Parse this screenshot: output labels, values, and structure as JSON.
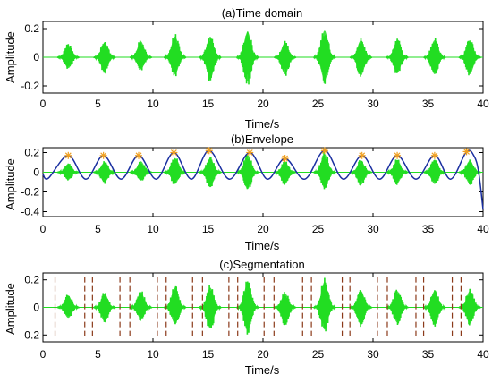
{
  "chart_data": [
    {
      "type": "line",
      "title": "(a)Time domain",
      "xlabel": "Time/s",
      "ylabel": "Amplitude",
      "xlim": [
        0,
        40
      ],
      "ylim": [
        -0.25,
        0.25
      ],
      "xticks": [
        0,
        5,
        10,
        15,
        20,
        25,
        30,
        35,
        40
      ],
      "yticks": [
        0.2,
        0,
        -0.2
      ],
      "yticklabels": [
        "0.2",
        "0",
        "-0.2"
      ],
      "grid": false,
      "series": [
        {
          "role": "signal",
          "color": "#22dd22",
          "burst_centers": [
            2.3,
            5.6,
            8.9,
            12.0,
            15.2,
            18.6,
            22.0,
            25.6,
            28.9,
            32.2,
            35.6,
            38.8
          ],
          "burst_peak": [
            0.1,
            0.12,
            0.13,
            0.17,
            0.17,
            0.21,
            0.12,
            0.22,
            0.14,
            0.14,
            0.14,
            0.14
          ],
          "burst_trough": [
            -0.09,
            -0.12,
            -0.1,
            -0.14,
            -0.18,
            -0.2,
            -0.14,
            -0.19,
            -0.15,
            -0.13,
            -0.14,
            -0.14
          ]
        }
      ]
    },
    {
      "type": "line",
      "title": "(b)Envelope",
      "xlabel": "Time/s",
      "ylabel": "Amplitude",
      "xlim": [
        0,
        40
      ],
      "ylim": [
        -0.45,
        0.25
      ],
      "xticks": [
        0,
        5,
        10,
        15,
        20,
        25,
        30,
        35,
        40
      ],
      "yticks": [
        0.2,
        0,
        -0.2,
        -0.4
      ],
      "yticklabels": [
        "0.2",
        "0",
        "-0.2",
        "-0.4"
      ],
      "grid": false,
      "envelope_color": "#1a2fa0",
      "peak_marker_color": "#f0a020",
      "peaks_x": [
        2.3,
        5.5,
        8.7,
        11.9,
        15.1,
        18.8,
        22.0,
        25.6,
        29.0,
        32.2,
        35.6,
        38.5
      ],
      "peaks_y": [
        0.17,
        0.17,
        0.17,
        0.2,
        0.22,
        0.2,
        0.14,
        0.22,
        0.17,
        0.17,
        0.17,
        0.21
      ],
      "envelope_tail": [
        [
          39.2,
          0.16
        ],
        [
          39.6,
          0.0
        ],
        [
          40.0,
          -0.38
        ]
      ],
      "envelope_start": [
        [
          0.0,
          -0.02
        ],
        [
          0.5,
          -0.06
        ]
      ]
    },
    {
      "type": "line",
      "title": "(c)Segmentation",
      "xlabel": "Time/s",
      "ylabel": "Amplitude",
      "xlim": [
        0,
        40
      ],
      "ylim": [
        -0.25,
        0.25
      ],
      "xticks": [
        0,
        5,
        10,
        15,
        20,
        25,
        30,
        35,
        40
      ],
      "yticks": [
        0.2,
        0,
        -0.2
      ],
      "yticklabels": [
        "0.2",
        "0",
        "-0.2"
      ],
      "grid": false,
      "segment_line_color": "#8b3a1a",
      "segment_boundaries": [
        1.1,
        3.8,
        4.5,
        7.0,
        7.9,
        10.4,
        11.2,
        13.6,
        14.5,
        16.9,
        17.7,
        20.1,
        21.0,
        23.6,
        24.4,
        27.2,
        27.9,
        30.4,
        31.3,
        33.9,
        34.6,
        37.2,
        38.0
      ]
    }
  ]
}
